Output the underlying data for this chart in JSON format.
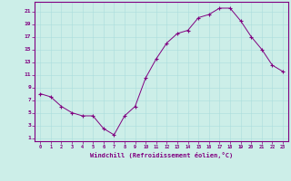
{
  "x": [
    0,
    1,
    2,
    3,
    4,
    5,
    6,
    7,
    8,
    9,
    10,
    11,
    12,
    13,
    14,
    15,
    16,
    17,
    18,
    19,
    20,
    21,
    22,
    23
  ],
  "y": [
    8,
    7.5,
    6,
    5,
    4.5,
    4.5,
    2.5,
    1.5,
    4.5,
    6,
    10.5,
    13.5,
    16,
    17.5,
    18,
    20,
    20.5,
    21.5,
    21.5,
    19.5,
    17,
    15,
    12.5,
    11.5
  ],
  "line_color": "#800080",
  "marker": "+",
  "marker_color": "#800080",
  "bg_color": "#cceee8",
  "grid_color": "#aadddd",
  "tick_color": "#800080",
  "xlabel": "Windchill (Refroidissement éolien,°C)",
  "xlabel_color": "#800080",
  "ylabel_ticks": [
    1,
    3,
    5,
    7,
    9,
    11,
    13,
    15,
    17,
    19,
    21
  ],
  "xlim": [
    -0.5,
    23.5
  ],
  "ylim": [
    0.5,
    22.5
  ],
  "xtick_labels": [
    "0",
    "1",
    "2",
    "3",
    "4",
    "5",
    "6",
    "7",
    "8",
    "9",
    "10",
    "11",
    "12",
    "13",
    "14",
    "15",
    "16",
    "17",
    "18",
    "19",
    "20",
    "21",
    "22",
    "23"
  ],
  "spine_color": "#800080"
}
